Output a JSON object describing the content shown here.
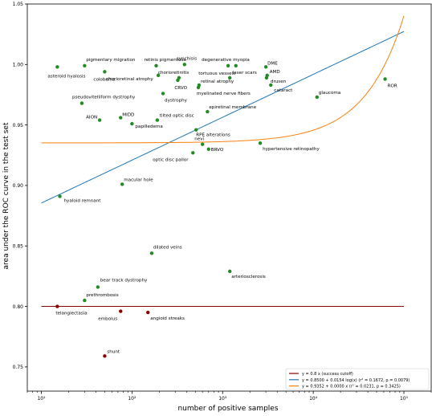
{
  "chart_data": {
    "type": "scatter",
    "title": "",
    "xlabel": "number of positive samples",
    "ylabel": "area under the ROC curve in the test set",
    "x_scale": "log",
    "xlim": [
      7,
      200000
    ],
    "ylim": [
      0.73,
      1.05
    ],
    "grid": false,
    "x_ticks": [
      10,
      100,
      1000,
      10000,
      100000
    ],
    "x_tick_labels": [
      "10¹",
      "10²",
      "10³",
      "10⁴",
      "10⁵"
    ],
    "y_ticks": [
      0.75,
      0.8,
      0.85,
      0.9,
      0.95,
      1.0,
      1.05
    ],
    "y_tick_labels": [
      "0.75",
      "0.80",
      "0.85",
      "0.90",
      "0.95",
      "1.00",
      "1.05"
    ],
    "legend_position": "bottom-right",
    "colors": {
      "success": "#228b22",
      "failure": "#8b0000",
      "cutoff": "#8b0000",
      "log_fit": "#1f77b4",
      "linear_fit": "#ff7f0e"
    },
    "lines": [
      {
        "name": "y = 0.8 x (success cutoff)",
        "color": "#8b0000",
        "kind": "constant",
        "value": 0.8,
        "x_range": [
          10,
          100000
        ]
      },
      {
        "name": "y = 0.8500 + 0.0154 log(x) (r² = 0.1672, p = 0.0079)",
        "color": "#1f77b4",
        "kind": "log",
        "a": 0.85,
        "b": 0.0154,
        "x_range": [
          10,
          100000
        ]
      },
      {
        "name": "y = 0.9352 + 0.0000 x (r² = 0.0231, p = 0.3425)",
        "color": "#ff7f0e",
        "kind": "linear",
        "a": 0.9352,
        "b": 1.05e-06,
        "x_range": [
          10,
          100000
        ]
      }
    ],
    "points": [
      {
        "label": "asteroid hyalosis",
        "x": 15,
        "y": 0.998,
        "status": "success",
        "anchor": "start",
        "dx": -12,
        "dy": 13
      },
      {
        "label": "pigmentary migration",
        "x": 30,
        "y": 0.999,
        "status": "success",
        "anchor": "start",
        "dx": 2,
        "dy": -6
      },
      {
        "label": "coloboma",
        "x": 50,
        "y": 0.994,
        "status": "success",
        "anchor": "start",
        "dx": -14,
        "dy": 11
      },
      {
        "label": "retinis pigmentosa",
        "x": 185,
        "y": 0.999,
        "status": "success",
        "anchor": "start",
        "dx": -15,
        "dy": -6
      },
      {
        "label": "synchisis",
        "x": 380,
        "y": 1.0,
        "status": "success",
        "anchor": "start",
        "dx": -10,
        "dy": -6
      },
      {
        "label": "chorioretinitis",
        "x": 330,
        "y": 0.989,
        "status": "success",
        "anchor": "start",
        "dx": -26,
        "dy": -5
      },
      {
        "label": "chorioretinal atrophy",
        "x": 195,
        "y": 0.991,
        "status": "success",
        "anchor": "start",
        "dx": -65,
        "dy": 6
      },
      {
        "label": "CRVO",
        "x": 320,
        "y": 0.987,
        "status": "success",
        "anchor": "start",
        "dx": -4,
        "dy": 11
      },
      {
        "label": "degenerative myopia",
        "x": 1150,
        "y": 0.999,
        "status": "success",
        "anchor": "start",
        "dx": -33,
        "dy": -6
      },
      {
        "label": "DME",
        "x": 3000,
        "y": 0.998,
        "status": "success",
        "anchor": "start",
        "dx": 2,
        "dy": -3
      },
      {
        "label": "laser scars",
        "x": 1400,
        "y": 0.999,
        "status": "success",
        "anchor": "start",
        "dx": -4,
        "dy": 10
      },
      {
        "label": "AMD",
        "x": 3100,
        "y": 0.991,
        "status": "success",
        "anchor": "start",
        "dx": 3,
        "dy": -3
      },
      {
        "label": "tortuous vessels",
        "x": 1200,
        "y": 0.989,
        "status": "success",
        "anchor": "start",
        "dx": -39,
        "dy": -4
      },
      {
        "label": "drusen",
        "x": 3050,
        "y": 0.989,
        "status": "success",
        "anchor": "start",
        "dx": 5,
        "dy": 6
      },
      {
        "label": "retinal atrophy",
        "x": 550,
        "y": 0.983,
        "status": "success",
        "anchor": "start",
        "dx": 2,
        "dy": -3
      },
      {
        "label": "myelinated nerve fibers",
        "x": 540,
        "y": 0.981,
        "status": "success",
        "anchor": "start",
        "dx": -2,
        "dy": 9
      },
      {
        "label": "cataract",
        "x": 3400,
        "y": 0.983,
        "status": "success",
        "anchor": "start",
        "dx": 4,
        "dy": 8
      },
      {
        "label": "ROR",
        "x": 62000,
        "y": 0.988,
        "status": "success",
        "anchor": "start",
        "dx": 3,
        "dy": 10
      },
      {
        "label": "dystrophy",
        "x": 220,
        "y": 0.976,
        "status": "success",
        "anchor": "start",
        "dx": 2,
        "dy": 10
      },
      {
        "label": "glaucoma",
        "x": 11000,
        "y": 0.973,
        "status": "success",
        "anchor": "start",
        "dx": 2,
        "dy": -4
      },
      {
        "label": "pseudovitelliform dystrophy",
        "x": 28,
        "y": 0.968,
        "status": "success",
        "anchor": "start",
        "dx": -12,
        "dy": -6
      },
      {
        "label": "epiretinal membrane",
        "x": 680,
        "y": 0.961,
        "status": "success",
        "anchor": "start",
        "dx": 2,
        "dy": -4
      },
      {
        "label": "MIDD",
        "x": 75,
        "y": 0.956,
        "status": "success",
        "anchor": "start",
        "dx": 2,
        "dy": -2
      },
      {
        "label": "AION",
        "x": 44,
        "y": 0.954,
        "status": "success",
        "anchor": "start",
        "dx": -17,
        "dy": -2
      },
      {
        "label": "tilted optic disc",
        "x": 190,
        "y": 0.954,
        "status": "success",
        "anchor": "start",
        "dx": 3,
        "dy": -4
      },
      {
        "label": "papilledema",
        "x": 100,
        "y": 0.951,
        "status": "success",
        "anchor": "start",
        "dx": 4,
        "dy": 5
      },
      {
        "label": "RPE alterations",
        "x": 510,
        "y": 0.946,
        "status": "success",
        "anchor": "start",
        "dx": 0,
        "dy": 8
      },
      {
        "label": "hypertensive retinopathy",
        "x": 2600,
        "y": 0.935,
        "status": "success",
        "anchor": "start",
        "dx": 3,
        "dy": 9
      },
      {
        "label": "nevi",
        "x": 600,
        "y": 0.934,
        "status": "success",
        "anchor": "start",
        "dx": -10,
        "dy": -5
      },
      {
        "label": "BRVO",
        "x": 700,
        "y": 0.93,
        "status": "success",
        "anchor": "start",
        "dx": 3,
        "dy": 2
      },
      {
        "label": "optic disc pallor",
        "x": 470,
        "y": 0.927,
        "status": "success",
        "anchor": "start",
        "dx": -50,
        "dy": 10
      },
      {
        "label": "macular hole",
        "x": 78,
        "y": 0.901,
        "status": "success",
        "anchor": "start",
        "dx": 2,
        "dy": -4
      },
      {
        "label": "hyaloid remnant",
        "x": 16,
        "y": 0.891,
        "status": "success",
        "anchor": "start",
        "dx": 5,
        "dy": 7
      },
      {
        "label": "dilated veins",
        "x": 165,
        "y": 0.844,
        "status": "success",
        "anchor": "start",
        "dx": 2,
        "dy": -6
      },
      {
        "label": "arteriosclerosis",
        "x": 1200,
        "y": 0.829,
        "status": "success",
        "anchor": "start",
        "dx": 2,
        "dy": 8
      },
      {
        "label": "bear track dystrophy",
        "x": 42,
        "y": 0.816,
        "status": "success",
        "anchor": "start",
        "dx": 3,
        "dy": -7
      },
      {
        "label": "prethrombosis",
        "x": 30,
        "y": 0.805,
        "status": "success",
        "anchor": "start",
        "dx": 2,
        "dy": -5
      },
      {
        "label": "telangiectasia",
        "x": 15,
        "y": 0.8,
        "status": "failure",
        "anchor": "start",
        "dx": -2,
        "dy": 10
      },
      {
        "label": "embolus",
        "x": 75,
        "y": 0.796,
        "status": "failure",
        "anchor": "start",
        "dx": -28,
        "dy": 11
      },
      {
        "label": "angioid streaks",
        "x": 150,
        "y": 0.795,
        "status": "failure",
        "anchor": "start",
        "dx": 3,
        "dy": 9
      },
      {
        "label": "shunt",
        "x": 50,
        "y": 0.759,
        "status": "failure",
        "anchor": "start",
        "dx": 3,
        "dy": -4
      }
    ]
  }
}
